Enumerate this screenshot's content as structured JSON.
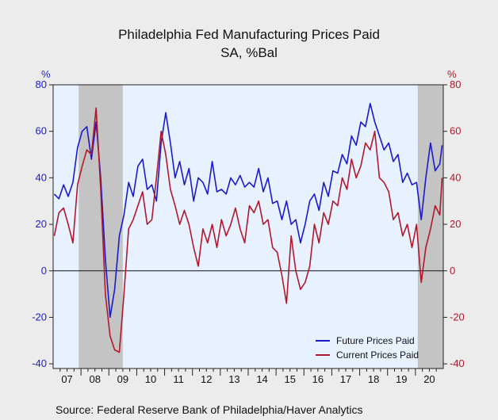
{
  "chart_data": {
    "type": "line",
    "title": "Philadelphia Fed Manufacturing Prices Paid",
    "subtitle": "SA, %Bal",
    "left_axis": {
      "unit_label": "%",
      "ticks": [
        -40,
        -20,
        0,
        20,
        40,
        60,
        80
      ],
      "color": "#1a1acc"
    },
    "right_axis": {
      "unit_label": "%",
      "ticks": [
        -40,
        -20,
        0,
        20,
        40,
        60,
        80
      ],
      "color": "#b2182b"
    },
    "ylim": [
      -42,
      80
    ],
    "x_range": [
      "2007-01",
      "2020-12"
    ],
    "x_ticks": [
      "07",
      "08",
      "09",
      "10",
      "11",
      "12",
      "13",
      "14",
      "15",
      "16",
      "17",
      "18",
      "19",
      "20"
    ],
    "recessions": [
      {
        "start": "2007-12",
        "end": "2009-06"
      },
      {
        "start": "2020-02",
        "end": "2020-12"
      }
    ],
    "zero_line": true,
    "legend_position": "bottom-right",
    "background": "#e8f1ff",
    "recession_color": "#c4c4c4",
    "series": [
      {
        "name": "Future Prices Paid",
        "color": "#1a1acc",
        "x": [
          "2007-01",
          "2007-03",
          "2007-05",
          "2007-07",
          "2007-09",
          "2007-11",
          "2008-01",
          "2008-03",
          "2008-05",
          "2008-07",
          "2008-09",
          "2008-11",
          "2009-01",
          "2009-03",
          "2009-05",
          "2009-07",
          "2009-09",
          "2009-11",
          "2010-01",
          "2010-03",
          "2010-05",
          "2010-07",
          "2010-09",
          "2010-11",
          "2011-01",
          "2011-03",
          "2011-05",
          "2011-07",
          "2011-09",
          "2011-11",
          "2012-01",
          "2012-03",
          "2012-05",
          "2012-07",
          "2012-09",
          "2012-11",
          "2013-01",
          "2013-03",
          "2013-05",
          "2013-07",
          "2013-09",
          "2013-11",
          "2014-01",
          "2014-03",
          "2014-05",
          "2014-07",
          "2014-09",
          "2014-11",
          "2015-01",
          "2015-03",
          "2015-05",
          "2015-07",
          "2015-09",
          "2015-11",
          "2016-01",
          "2016-03",
          "2016-05",
          "2016-07",
          "2016-09",
          "2016-11",
          "2017-01",
          "2017-03",
          "2017-05",
          "2017-07",
          "2017-09",
          "2017-11",
          "2018-01",
          "2018-03",
          "2018-05",
          "2018-07",
          "2018-09",
          "2018-11",
          "2019-01",
          "2019-03",
          "2019-05",
          "2019-07",
          "2019-09",
          "2019-11",
          "2020-01",
          "2020-03",
          "2020-05",
          "2020-07",
          "2020-09",
          "2020-11",
          "2020-12"
        ],
        "values": [
          33,
          31,
          37,
          32,
          38,
          53,
          60,
          62,
          48,
          64,
          40,
          5,
          -20,
          -8,
          15,
          24,
          38,
          32,
          45,
          48,
          35,
          37,
          30,
          55,
          68,
          55,
          40,
          47,
          37,
          44,
          30,
          40,
          38,
          33,
          47,
          34,
          35,
          33,
          40,
          37,
          41,
          36,
          38,
          36,
          44,
          34,
          40,
          29,
          30,
          22,
          30,
          20,
          22,
          12,
          20,
          30,
          33,
          26,
          38,
          32,
          43,
          42,
          50,
          46,
          58,
          54,
          64,
          62,
          72,
          64,
          58,
          52,
          55,
          47,
          50,
          38,
          42,
          37,
          38,
          22,
          40,
          55,
          43,
          46,
          54
        ]
      },
      {
        "name": "Current Prices Paid",
        "color": "#b2182b",
        "x": [
          "2007-01",
          "2007-03",
          "2007-05",
          "2007-07",
          "2007-09",
          "2007-11",
          "2008-01",
          "2008-03",
          "2008-05",
          "2008-07",
          "2008-09",
          "2008-11",
          "2009-01",
          "2009-03",
          "2009-05",
          "2009-07",
          "2009-09",
          "2009-11",
          "2010-01",
          "2010-03",
          "2010-05",
          "2010-07",
          "2010-09",
          "2010-11",
          "2011-01",
          "2011-03",
          "2011-05",
          "2011-07",
          "2011-09",
          "2011-11",
          "2012-01",
          "2012-03",
          "2012-05",
          "2012-07",
          "2012-09",
          "2012-11",
          "2013-01",
          "2013-03",
          "2013-05",
          "2013-07",
          "2013-09",
          "2013-11",
          "2014-01",
          "2014-03",
          "2014-05",
          "2014-07",
          "2014-09",
          "2014-11",
          "2015-01",
          "2015-03",
          "2015-05",
          "2015-07",
          "2015-09",
          "2015-11",
          "2016-01",
          "2016-03",
          "2016-05",
          "2016-07",
          "2016-09",
          "2016-11",
          "2017-01",
          "2017-03",
          "2017-05",
          "2017-07",
          "2017-09",
          "2017-11",
          "2018-01",
          "2018-03",
          "2018-05",
          "2018-07",
          "2018-09",
          "2018-11",
          "2019-01",
          "2019-03",
          "2019-05",
          "2019-07",
          "2019-09",
          "2019-11",
          "2020-01",
          "2020-03",
          "2020-05",
          "2020-07",
          "2020-09",
          "2020-11",
          "2020-12"
        ],
        "values": [
          15,
          25,
          27,
          20,
          12,
          37,
          45,
          52,
          50,
          70,
          35,
          -10,
          -28,
          -34,
          -35,
          -10,
          18,
          22,
          28,
          34,
          20,
          22,
          40,
          60,
          50,
          35,
          28,
          20,
          26,
          20,
          10,
          2,
          18,
          12,
          20,
          10,
          22,
          15,
          20,
          27,
          18,
          12,
          28,
          25,
          30,
          20,
          22,
          10,
          8,
          -2,
          -14,
          15,
          0,
          -8,
          -5,
          2,
          20,
          12,
          25,
          20,
          30,
          28,
          40,
          35,
          48,
          40,
          45,
          55,
          52,
          60,
          40,
          38,
          34,
          22,
          25,
          15,
          20,
          10,
          20,
          -5,
          10,
          18,
          28,
          24,
          40
        ]
      }
    ]
  },
  "source": "Source:  Federal Reserve Bank of Philadelphia/Haver Analytics"
}
